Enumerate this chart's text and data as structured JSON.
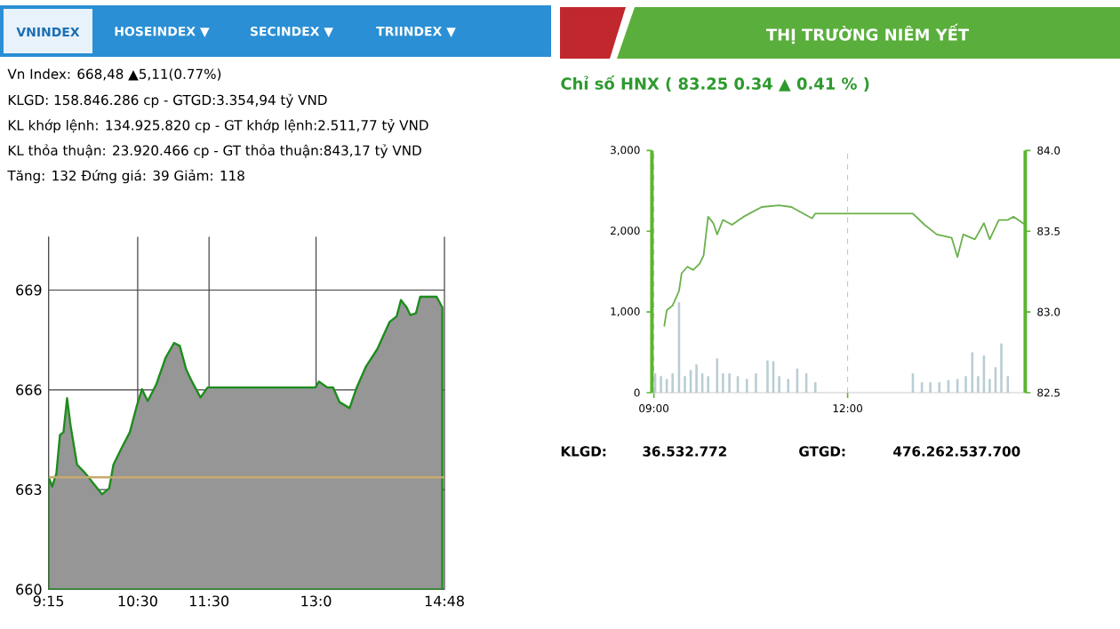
{
  "chart_data": [
    {
      "type": "area",
      "title": "Vn Index: 668,48 ▲5,11(0.77%)",
      "annotations": [
        "VNINDEX",
        "HOSEINDEX ▼",
        "SECINDEX ▼",
        "TRIINDEX ▼",
        "KLGD: 158.846.286 cp - GTGD:3.354,94 tỷ VND",
        "KL khớp lệnh: 134.925.820 cp - GT khớp lệnh:2.511,77 tỷ VND",
        "KL thỏa thuận: 23.920.466 cp - GT thỏa thuận:843,17 tỷ VND",
        "Tăng: 132 Đứng giá: 39 Giảm: 118"
      ],
      "x": [
        9.25,
        9.3,
        9.36,
        9.41,
        9.46,
        9.51,
        9.56,
        9.65,
        9.77,
        9.9,
        10.0,
        10.1,
        10.16,
        10.27,
        10.39,
        10.49,
        10.56,
        10.64,
        10.76,
        10.89,
        11.01,
        11.09,
        11.18,
        11.26,
        11.38,
        11.48,
        12.99,
        13.04,
        13.16,
        13.24,
        13.33,
        13.47,
        13.57,
        13.7,
        13.86,
        14.03,
        14.13,
        14.19,
        14.27,
        14.32,
        14.4,
        14.46,
        14.69,
        14.77
      ],
      "values": [
        663.39,
        663.09,
        663.48,
        664.64,
        664.73,
        665.75,
        664.91,
        663.75,
        663.48,
        663.13,
        662.86,
        663.04,
        663.75,
        664.23,
        664.73,
        665.54,
        666.02,
        665.66,
        666.16,
        666.96,
        667.41,
        667.32,
        666.61,
        666.25,
        665.77,
        666.07,
        666.07,
        666.25,
        666.07,
        666.07,
        665.63,
        665.45,
        666.07,
        666.7,
        667.23,
        668.04,
        668.21,
        668.7,
        668.48,
        668.25,
        668.3,
        668.8,
        668.8,
        668.48
      ],
      "color": "#969696",
      "xlim": [
        9.25,
        14.8
      ],
      "ylim": [
        660,
        670.6
      ],
      "xticks": [
        {
          "value": 9.25,
          "label": "9:15"
        },
        {
          "value": 10.5,
          "label": "10:30"
        },
        {
          "value": 11.5,
          "label": "11:30"
        },
        {
          "value": 13,
          "label": "13:0"
        },
        {
          "value": 14.8,
          "label": "14:48"
        }
      ],
      "yticks": [
        660,
        663,
        666,
        669
      ],
      "grid": true,
      "ref_lines": [
        {
          "axis": "y",
          "value": 663.37,
          "color": "#c8a96e"
        }
      ]
    },
    {
      "type": "line",
      "title": "THỊ TRƯỜNG NIÊM YẾT",
      "subtitle": "Chỉ số HNX ( 83.25   0.34 ▲  0.41 % )",
      "annotations": [
        "KLGD:",
        "36.532.772",
        "GTGD:",
        "476.262.537.700"
      ],
      "xlim": [
        8.97,
        14.75
      ],
      "xticks": [
        {
          "value": 9,
          "label": "09:00"
        },
        {
          "value": 12,
          "label": "12:00"
        }
      ],
      "ylim": [
        0,
        3000
      ],
      "yticks": [
        0,
        {
          "value": 1000,
          "label": "1,000"
        },
        {
          "value": 2000,
          "label": "2,000"
        },
        {
          "value": 3000,
          "label": "3,000"
        }
      ],
      "y2lim": [
        82.5,
        84
      ],
      "y2ticks": [
        82.5,
        {
          "value": 83,
          "label": "83.0"
        },
        83.5,
        {
          "value": 84,
          "label": "84.0"
        }
      ],
      "grid": "x",
      "series": [
        {
          "type": "bar",
          "color": "#b9cdd4",
          "x": [
            9.02,
            9.11,
            9.2,
            9.29,
            9.39,
            9.48,
            9.57,
            9.66,
            9.75,
            9.84,
            9.98,
            10.07,
            10.17,
            10.3,
            10.44,
            10.58,
            10.76,
            10.85,
            10.94,
            11.08,
            11.22,
            11.36,
            11.5,
            13.01,
            13.15,
            13.28,
            13.42,
            13.56,
            13.7,
            13.83,
            13.93,
            14.02,
            14.11,
            14.2,
            14.29,
            14.38,
            14.48
          ],
          "values": [
            240,
            205,
            170,
            240,
            1120,
            205,
            280,
            350,
            240,
            205,
            425,
            240,
            240,
            205,
            170,
            240,
            400,
            390,
            205,
            170,
            300,
            240,
            130,
            240,
            130,
            130,
            130,
            155,
            170,
            205,
            500,
            205,
            460,
            170,
            315,
            610,
            205
          ]
        },
        {
          "type": "line",
          "axis": "y2",
          "color": "#6ab04c",
          "x": [
            9.16,
            9.2,
            9.29,
            9.39,
            9.43,
            9.52,
            9.61,
            9.71,
            9.77,
            9.84,
            9.92,
            9.98,
            10.07,
            10.21,
            10.39,
            10.67,
            10.94,
            11.13,
            11.31,
            11.45,
            11.5,
            13.01,
            13.19,
            13.38,
            13.61,
            13.7,
            13.79,
            13.97,
            14.11,
            14.2,
            14.34,
            14.48,
            14.57,
            14.75
          ],
          "values": [
            82.91,
            83.01,
            83.04,
            83.13,
            83.24,
            83.28,
            83.26,
            83.3,
            83.35,
            83.59,
            83.55,
            83.48,
            83.57,
            83.54,
            83.59,
            83.65,
            83.66,
            83.65,
            83.61,
            83.58,
            83.61,
            83.61,
            83.54,
            83.48,
            83.46,
            83.34,
            83.48,
            83.45,
            83.55,
            83.45,
            83.57,
            83.57,
            83.59,
            83.54
          ]
        }
      ]
    }
  ]
}
